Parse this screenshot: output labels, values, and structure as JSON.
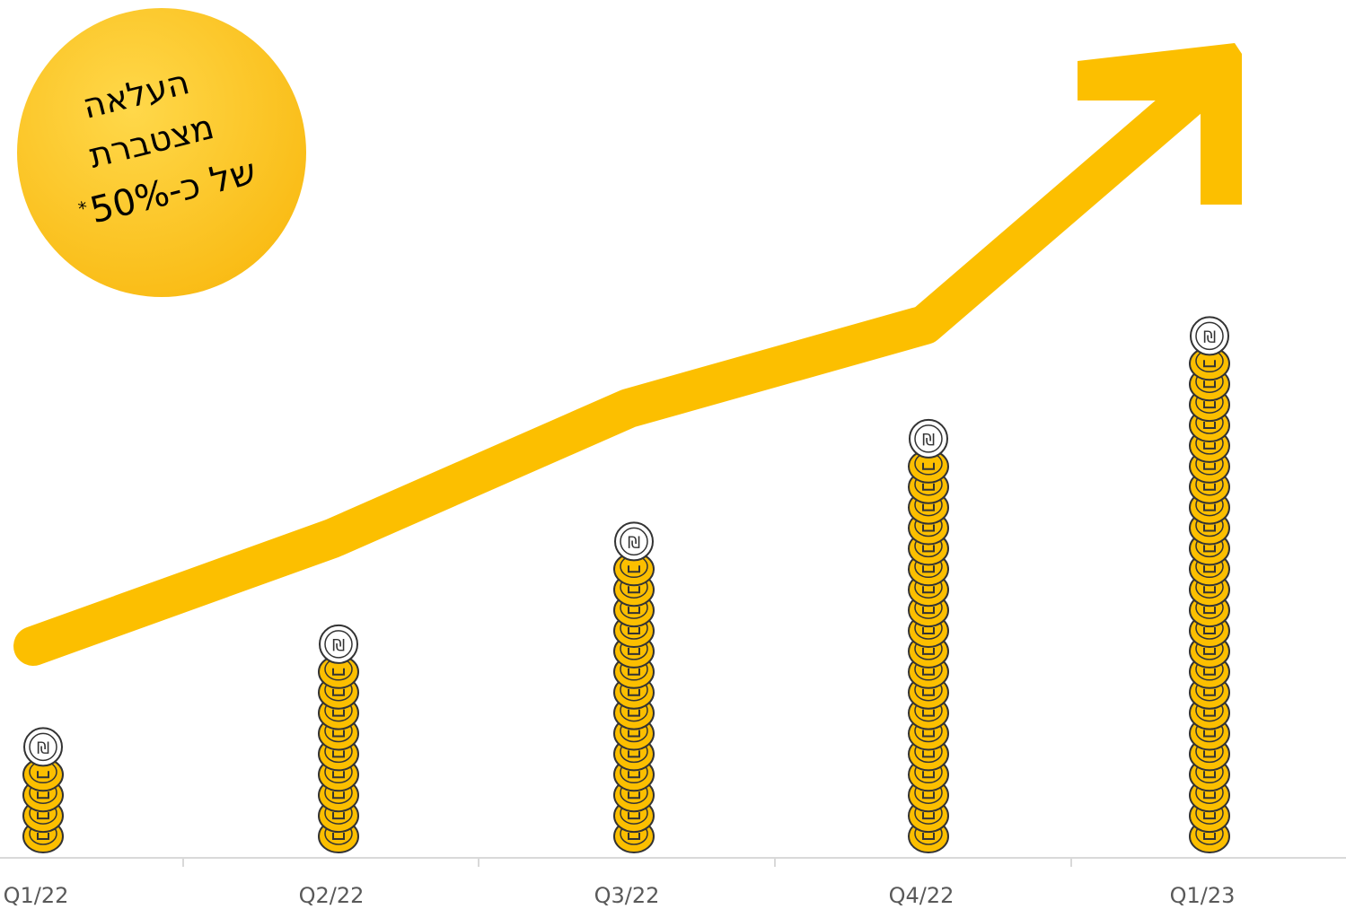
{
  "badge": {
    "lines": [
      "העלאה",
      "מצטברת",
      "של כ-50%"
    ],
    "footnote_mark": "*",
    "color": "#ffc524"
  },
  "colors": {
    "coin": "#fcbf00",
    "coin_edge": "#333333",
    "arrow": "#fcbf00",
    "axis": "#d9d9d9",
    "tick_text": "#595959"
  },
  "chart_data": {
    "type": "bar",
    "title": "",
    "xlabel": "",
    "ylabel": "",
    "categories": [
      "Q1/22",
      "Q2/22",
      "Q3/22",
      "Q4/22",
      "Q1/23"
    ],
    "series": [
      {
        "values": [
          5,
          10,
          15,
          20,
          25
        ]
      }
    ],
    "coin_symbol": "₪",
    "trend_arrow": true
  }
}
